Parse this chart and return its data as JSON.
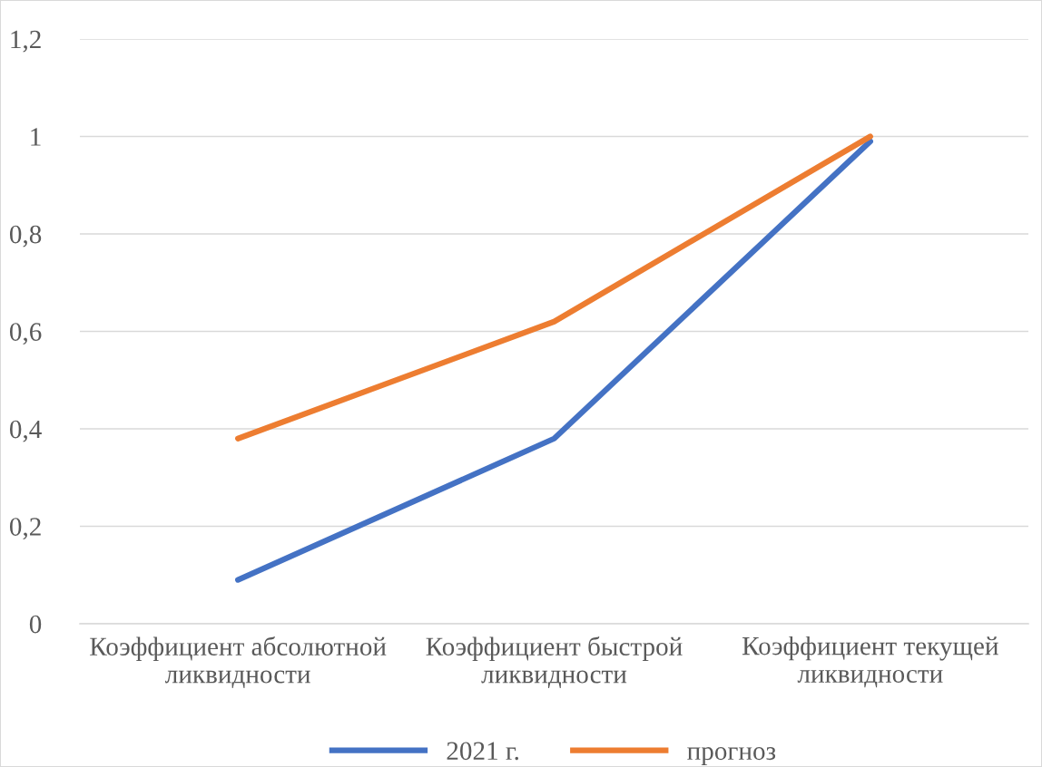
{
  "chart_data": {
    "type": "line",
    "categories": [
      "Коэффициент абсолютной\nликвидности",
      "Коэффициент быстрой\nликвидности",
      "Коэффициент текущей\nликвидности"
    ],
    "series": [
      {
        "name": "2021 г.",
        "color": "#4472c4",
        "values": [
          0.09,
          0.38,
          0.99
        ]
      },
      {
        "name": "прогноз",
        "color": "#ed7d31",
        "values": [
          0.38,
          0.62,
          1.0
        ]
      }
    ],
    "ylim": [
      0,
      1.2
    ],
    "yticks": [
      {
        "value": 0,
        "label": "0"
      },
      {
        "value": 0.2,
        "label": "0,2"
      },
      {
        "value": 0.4,
        "label": "0,4"
      },
      {
        "value": 0.6,
        "label": "0,6"
      },
      {
        "value": 0.8,
        "label": "0,8"
      },
      {
        "value": 1,
        "label": "1"
      },
      {
        "value": 1.2,
        "label": "1,2"
      }
    ],
    "grid": "y",
    "legend": "bottom",
    "marker": "none",
    "line_style": "solid"
  }
}
